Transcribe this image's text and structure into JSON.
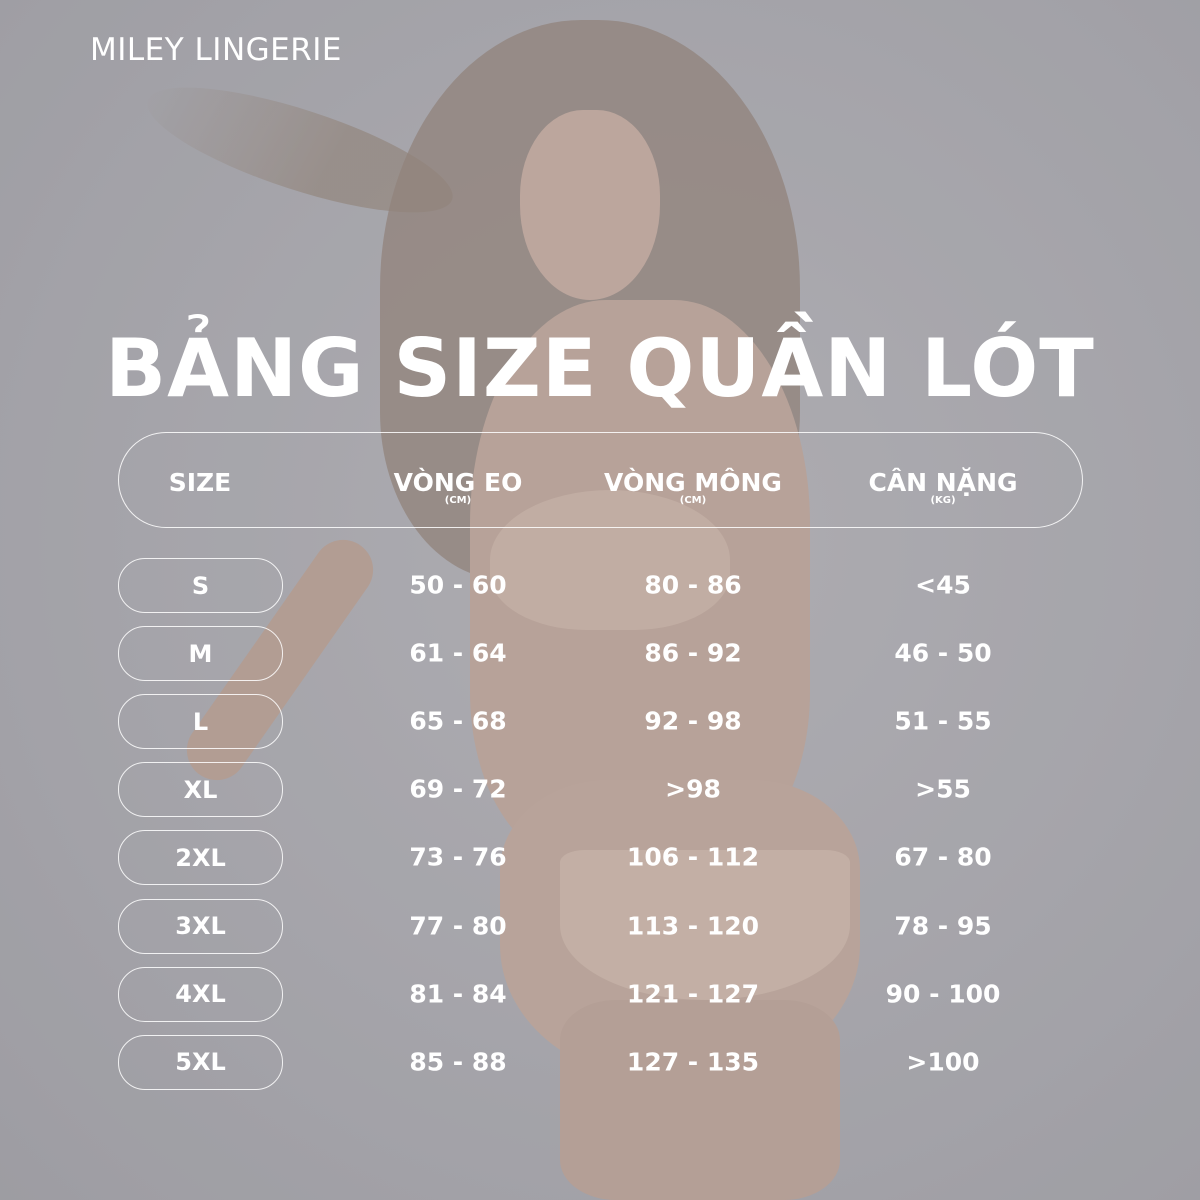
{
  "brand": "MILEY LINGERIE",
  "title": "BẢNG SIZE QUẦN LÓT",
  "headers": [
    {
      "label": "SIZE",
      "unit": ""
    },
    {
      "label": "VÒNG EO",
      "unit": "(CM)"
    },
    {
      "label": "VÒNG MÔNG",
      "unit": "(CM)"
    },
    {
      "label": "CÂN NẶNG",
      "unit": "(KG)"
    }
  ],
  "rows": [
    {
      "size": "S",
      "waist": "50 - 60",
      "hip": "80 - 86",
      "weight": "<45"
    },
    {
      "size": "M",
      "waist": "61 - 64",
      "hip": "86 - 92",
      "weight": "46 - 50"
    },
    {
      "size": "L",
      "waist": "65 - 68",
      "hip": "92 - 98",
      "weight": "51 - 55"
    },
    {
      "size": "XL",
      "waist": "69 - 72",
      "hip": ">98",
      "weight": ">55"
    },
    {
      "size": "2XL",
      "waist": "73 - 76",
      "hip": "106 - 112",
      "weight": "67 - 80"
    },
    {
      "size": "3XL",
      "waist": "77 - 80",
      "hip": "113 - 120",
      "weight": "78 - 95"
    },
    {
      "size": "4XL",
      "waist": "81 - 84",
      "hip": "121 - 127",
      "weight": "90 - 100"
    },
    {
      "size": "5XL",
      "waist": "85 - 88",
      "hip": "127 - 135",
      "weight": ">100"
    }
  ]
}
